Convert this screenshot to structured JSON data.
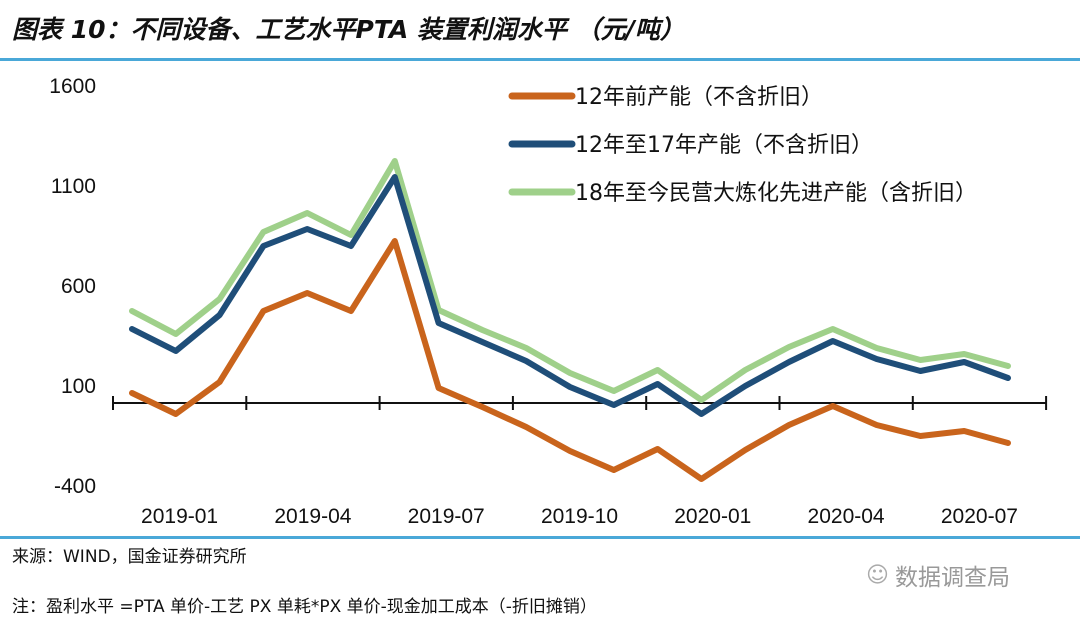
{
  "title": "图表 10：不同设备、工艺水平PTA 装置利润水平 （元/吨）",
  "source": "来源：WIND，国金证券研究所",
  "note": "注：盈利水平 =PTA 单价-工艺 PX 单耗*PX 单价-现金加工成本（-折旧摊销）",
  "watermark": "数据调查局",
  "chart_data": {
    "type": "line",
    "title": "不同设备、工艺水平PTA 装置利润水平 （元/吨）",
    "xlabel": "",
    "ylabel": "",
    "ylim": [
      -400,
      1600
    ],
    "yticks": [
      "1600",
      "1100",
      "600",
      "100",
      "-400"
    ],
    "ytick_values": [
      1600,
      1100,
      600,
      100,
      -400
    ],
    "xtick_labels": [
      "2019-01",
      "2019-04",
      "2019-07",
      "2019-10",
      "2020-01",
      "2020-04",
      "2020-07"
    ],
    "x": [
      "2019-01",
      "2019-02",
      "2019-03",
      "2019-04",
      "2019-05",
      "2019-06",
      "2019-07",
      "2019-08",
      "2019-09",
      "2019-10",
      "2019-11",
      "2019-12",
      "2020-01",
      "2020-02",
      "2020-03",
      "2020-04",
      "2020-05",
      "2020-06",
      "2020-07",
      "2020-08",
      "2020-09"
    ],
    "legend_position": "top-right",
    "grid": false,
    "series": [
      {
        "name": "12年前产能（不含折旧）",
        "color": "#c9641c",
        "values": [
          60,
          -45,
          115,
          470,
          560,
          470,
          820,
          85,
          -10,
          -110,
          -230,
          -325,
          -220,
          -370,
          -225,
          -100,
          -5,
          -100,
          -155,
          -130,
          -190
        ]
      },
      {
        "name": "12年至17年产能（不含折旧）",
        "color": "#1f4e79",
        "values": [
          380,
          270,
          450,
          795,
          880,
          795,
          1140,
          410,
          315,
          220,
          90,
          0,
          105,
          -45,
          95,
          215,
          320,
          230,
          170,
          215,
          135
        ]
      },
      {
        "name": "18年至今民营大炼化先进产能（含折旧）",
        "color": "#9fd08a",
        "values": [
          470,
          355,
          530,
          865,
          960,
          850,
          1220,
          475,
          375,
          285,
          160,
          70,
          175,
          25,
          175,
          290,
          380,
          285,
          225,
          255,
          195
        ]
      }
    ]
  }
}
